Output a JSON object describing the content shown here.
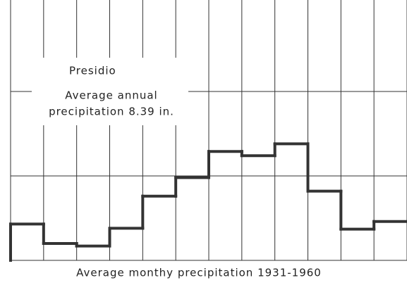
{
  "chart_data": {
    "type": "step",
    "title": "Average monthy precipitation 1931-1960",
    "annotations": [
      "Presidio",
      "Average annual",
      "precipitation 8.39 in."
    ],
    "categories": [
      null,
      null,
      null,
      null,
      null,
      null,
      null,
      null,
      null,
      null,
      null,
      null
    ],
    "values": [
      0.43,
      0.2,
      0.17,
      0.38,
      0.76,
      0.98,
      1.29,
      1.24,
      1.38,
      0.82,
      0.37,
      0.46
    ],
    "color": "#333333",
    "ylim": [
      0,
      3
    ],
    "yticks": [
      0,
      1,
      2
    ],
    "grid": true
  }
}
